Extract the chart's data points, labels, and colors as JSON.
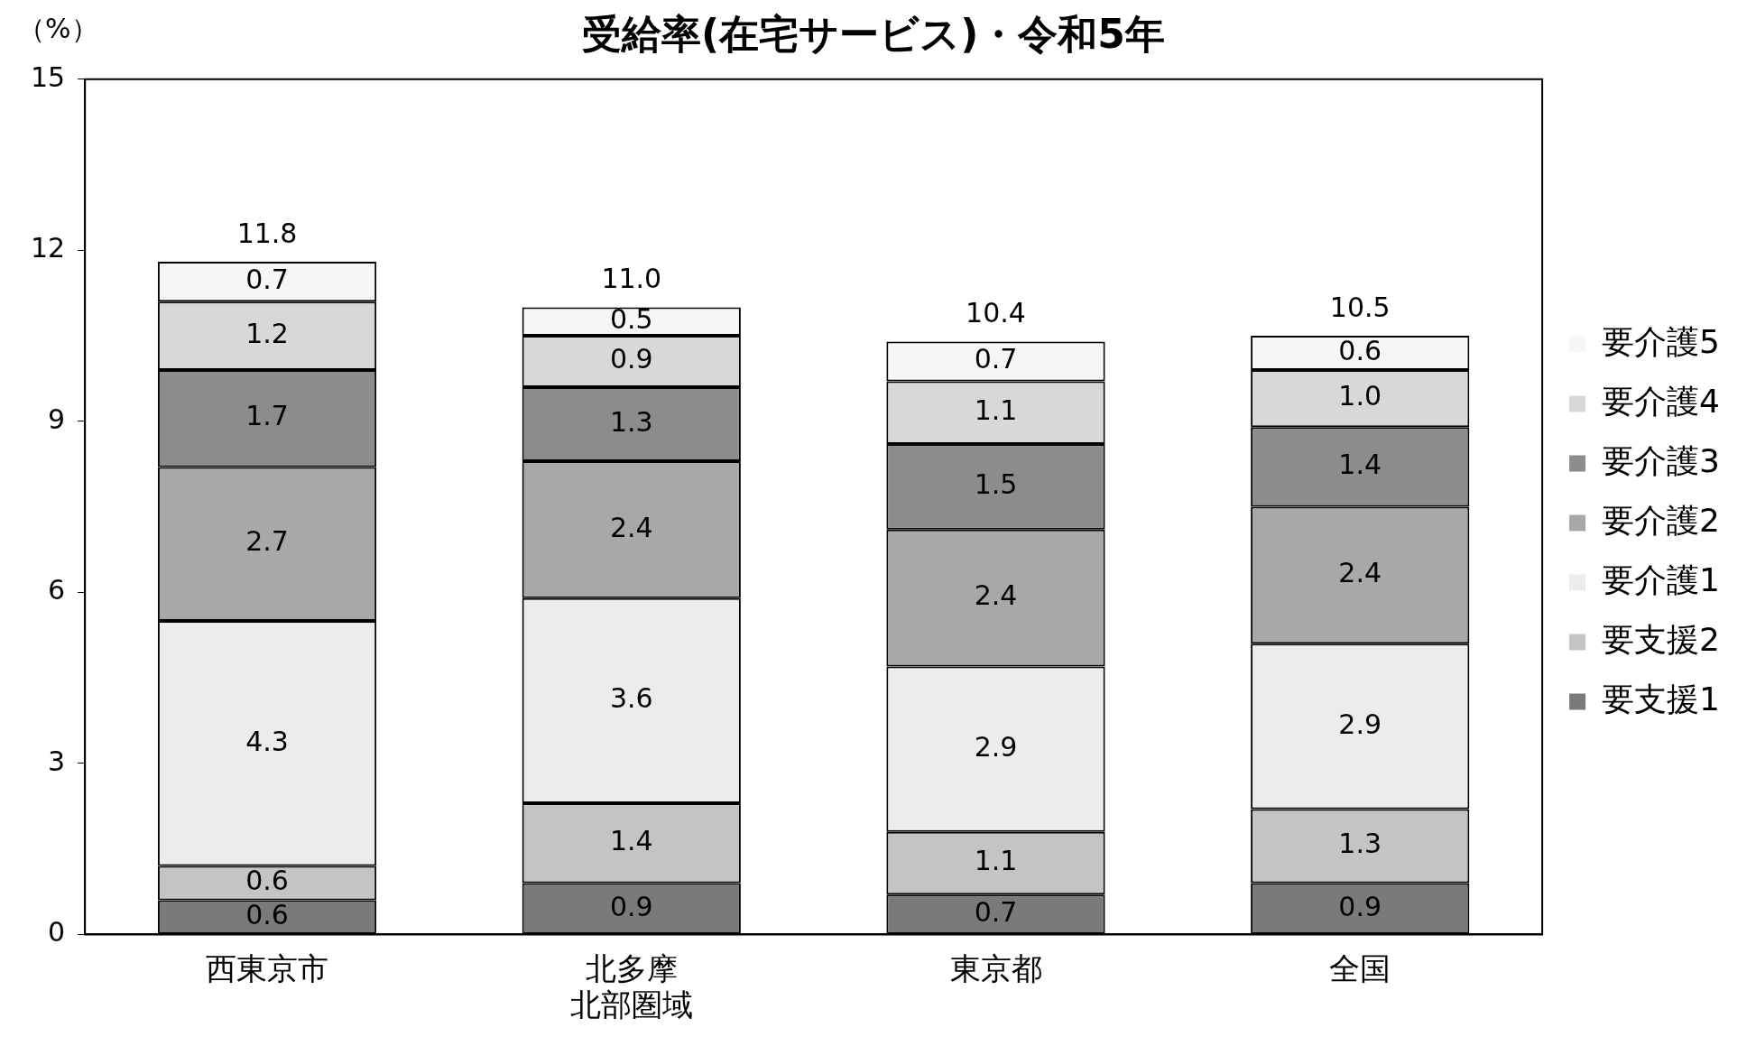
{
  "chart_data": {
    "type": "bar",
    "title": "受給率(在宅サービス)・令和5年",
    "ylabel": "（%）",
    "categories": [
      "西東京市",
      "北多摩北部圏域",
      "東京都",
      "全国"
    ],
    "stacked": true,
    "series": [
      {
        "name": "要支援1",
        "color": "#7a7a7a",
        "values": [
          0.6,
          0.9,
          0.7,
          0.9
        ],
        "value_labels": [
          "0.6",
          "0.9",
          "0.7",
          "0.9"
        ]
      },
      {
        "name": "要支援2",
        "color": "#c4c4c4",
        "values": [
          0.6,
          1.4,
          1.1,
          1.3
        ],
        "value_labels": [
          "0.6",
          "1.4",
          "1.1",
          "1.3"
        ]
      },
      {
        "name": "要介護1",
        "color": "#ececec",
        "values": [
          4.3,
          3.6,
          2.9,
          2.9
        ],
        "value_labels": [
          "4.3",
          "3.6",
          "2.9",
          "2.9"
        ]
      },
      {
        "name": "要介護2",
        "color": "#a8a8a8",
        "values": [
          2.7,
          2.4,
          2.4,
          2.4
        ],
        "value_labels": [
          "2.7",
          "2.4",
          "2.4",
          "2.4"
        ]
      },
      {
        "name": "要介護3",
        "color": "#8c8c8c",
        "values": [
          1.7,
          1.3,
          1.5,
          1.4
        ],
        "value_labels": [
          "1.7",
          "1.3",
          "1.5",
          "1.4"
        ]
      },
      {
        "name": "要介護4",
        "color": "#d8d8d8",
        "values": [
          1.2,
          0.9,
          1.1,
          1.0
        ],
        "value_labels": [
          "1.2",
          "0.9",
          "1.1",
          "1.0"
        ]
      },
      {
        "name": "要介護5",
        "color": "#f6f6f6",
        "values": [
          0.7,
          0.5,
          0.7,
          0.6
        ],
        "value_labels": [
          "0.7",
          "0.5",
          "0.7",
          "0.6"
        ]
      }
    ],
    "totals": [
      "11.8",
      "11.0",
      "10.4",
      "10.5"
    ],
    "ylim": [
      0,
      15
    ],
    "yticks": [
      0,
      3,
      6,
      9,
      12,
      15
    ],
    "grid": false,
    "legend": "right"
  }
}
